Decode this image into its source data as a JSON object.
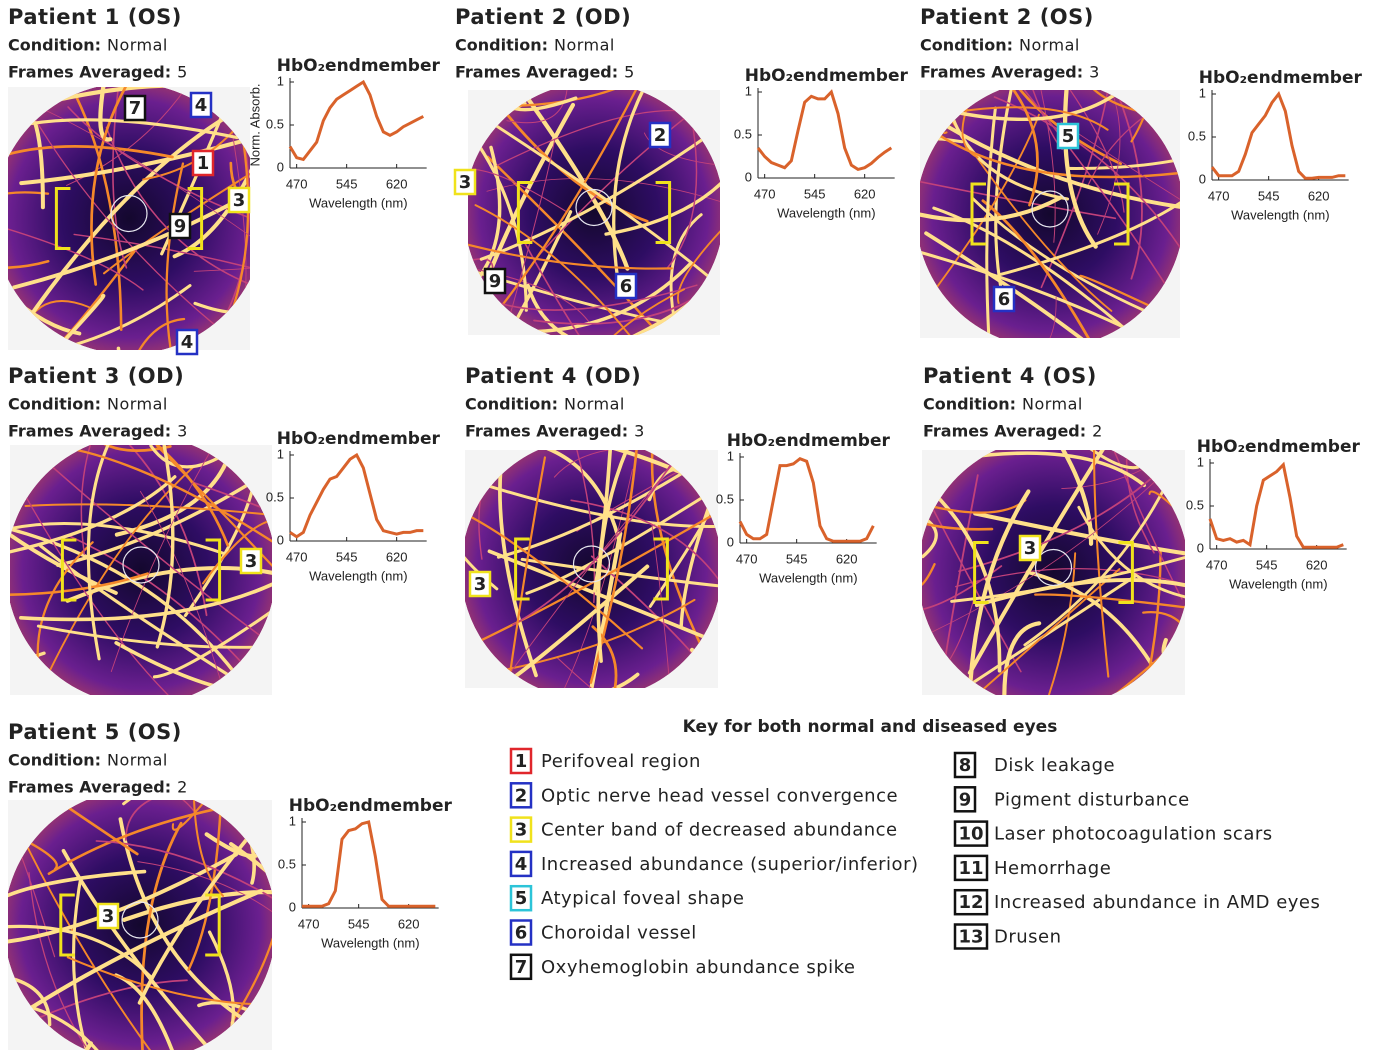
{
  "panels": [
    {
      "title": "Patient 1 (OS)",
      "condition_label": "Condition:",
      "condition": "Normal",
      "frames_label": "Frames Averaged:",
      "frames": 5,
      "markers": [
        "7",
        "4",
        "1",
        "3",
        "9",
        "4"
      ]
    },
    {
      "title": "Patient 2 (OD)",
      "condition_label": "Condition:",
      "condition": "Normal",
      "frames_label": "Frames Averaged:",
      "frames": 5,
      "markers": [
        "2",
        "3",
        "9",
        "6"
      ]
    },
    {
      "title": "Patient 2 (OS)",
      "condition_label": "Condition:",
      "condition": "Normal",
      "frames_label": "Frames Averaged:",
      "frames": 3,
      "markers": [
        "5",
        "6"
      ]
    },
    {
      "title": "Patient 3 (OD)",
      "condition_label": "Condition:",
      "condition": "Normal",
      "frames_label": "Frames Averaged:",
      "frames": 3,
      "markers": [
        "3"
      ]
    },
    {
      "title": "Patient 4 (OD)",
      "condition_label": "Condition:",
      "condition": "Normal",
      "frames_label": "Frames Averaged:",
      "frames": 3,
      "markers": [
        "3"
      ]
    },
    {
      "title": "Patient 4 (OS)",
      "condition_label": "Condition:",
      "condition": "Normal",
      "frames_label": "Frames Averaged:",
      "frames": 2,
      "markers": [
        "3"
      ]
    },
    {
      "title": "Patient 5 (OS)",
      "condition_label": "Condition:",
      "condition": "Normal",
      "frames_label": "Frames Averaged:",
      "frames": 2,
      "markers": [
        "3"
      ]
    }
  ],
  "chart_data": [
    {
      "type": "line",
      "title": "HbO₂endmember",
      "xlabel": "Wavelength (nm)",
      "ylabel": "Norm. Absorb.",
      "x": [
        460,
        470,
        480,
        490,
        500,
        510,
        520,
        530,
        540,
        550,
        560,
        570,
        580,
        590,
        600,
        610,
        620,
        630,
        640,
        650,
        660
      ],
      "series": [
        {
          "color": "#d9622b",
          "values": [
            0.25,
            0.12,
            0.1,
            0.2,
            0.3,
            0.55,
            0.7,
            0.8,
            0.85,
            0.9,
            0.95,
            1,
            0.85,
            0.6,
            0.42,
            0.38,
            0.42,
            0.48,
            0.52,
            0.56,
            0.6
          ]
        }
      ],
      "xlim": [
        460,
        665
      ],
      "ylim": [
        0,
        1
      ],
      "xticks": [
        470,
        545,
        620
      ],
      "yticks": [
        0,
        0.5,
        1
      ]
    },
    {
      "type": "line",
      "title": "HbO₂endmember",
      "xlabel": "Wavelength (nm)",
      "x": [
        460,
        470,
        480,
        490,
        500,
        510,
        520,
        530,
        540,
        550,
        560,
        570,
        580,
        590,
        600,
        610,
        620,
        630,
        640,
        650,
        660
      ],
      "series": [
        {
          "color": "#d9622b",
          "values": [
            0.35,
            0.25,
            0.18,
            0.15,
            0.12,
            0.2,
            0.55,
            0.88,
            0.95,
            0.92,
            0.92,
            1,
            0.75,
            0.35,
            0.15,
            0.1,
            0.12,
            0.17,
            0.24,
            0.3,
            0.35
          ]
        }
      ],
      "xlim": [
        460,
        665
      ],
      "ylim": [
        0,
        1
      ],
      "xticks": [
        470,
        545,
        620
      ],
      "yticks": [
        0,
        0.5,
        1
      ]
    },
    {
      "type": "line",
      "title": "HbO₂endmember",
      "xlabel": "Wavelength (nm)",
      "x": [
        460,
        470,
        480,
        490,
        500,
        510,
        520,
        530,
        540,
        550,
        560,
        570,
        580,
        590,
        600,
        610,
        620,
        630,
        640,
        650,
        660
      ],
      "series": [
        {
          "color": "#d9622b",
          "values": [
            0.15,
            0.05,
            0.05,
            0.05,
            0.1,
            0.3,
            0.55,
            0.65,
            0.75,
            0.9,
            1,
            0.8,
            0.4,
            0.1,
            0.02,
            0.02,
            0.03,
            0.03,
            0.03,
            0.05,
            0.05
          ]
        }
      ],
      "xlim": [
        460,
        665
      ],
      "ylim": [
        0,
        1
      ],
      "xticks": [
        470,
        545,
        620
      ],
      "yticks": [
        0,
        0.5,
        1
      ]
    },
    {
      "type": "line",
      "title": "HbO₂endmember",
      "xlabel": "Wavelength (nm)",
      "x": [
        460,
        470,
        480,
        490,
        500,
        510,
        520,
        530,
        540,
        550,
        560,
        570,
        580,
        590,
        600,
        610,
        620,
        630,
        640,
        650,
        660
      ],
      "series": [
        {
          "color": "#d9622b",
          "values": [
            0.1,
            0.05,
            0.1,
            0.3,
            0.45,
            0.6,
            0.72,
            0.75,
            0.85,
            0.95,
            1,
            0.85,
            0.55,
            0.25,
            0.12,
            0.1,
            0.08,
            0.1,
            0.1,
            0.12,
            0.12
          ]
        }
      ],
      "xlim": [
        460,
        665
      ],
      "ylim": [
        0,
        1
      ],
      "xticks": [
        470,
        545,
        620
      ],
      "yticks": [
        0,
        0.5,
        1
      ]
    },
    {
      "type": "line",
      "title": "HbO₂endmember",
      "xlabel": "Wavelength (nm)",
      "x": [
        460,
        470,
        480,
        490,
        500,
        510,
        520,
        530,
        540,
        550,
        560,
        570,
        580,
        590,
        600,
        610,
        620,
        630,
        640,
        650,
        660
      ],
      "series": [
        {
          "color": "#d9622b",
          "values": [
            0.25,
            0.1,
            0.05,
            0.05,
            0.1,
            0.5,
            0.9,
            0.9,
            0.92,
            0.98,
            0.95,
            0.7,
            0.2,
            0.05,
            0.02,
            0.02,
            0.02,
            0.02,
            0.02,
            0.05,
            0.2
          ]
        }
      ],
      "xlim": [
        460,
        665
      ],
      "ylim": [
        0,
        1
      ],
      "xticks": [
        470,
        545,
        620
      ],
      "yticks": [
        0,
        0.5,
        1
      ]
    },
    {
      "type": "line",
      "title": "HbO₂endmember",
      "xlabel": "Wavelength (nm)",
      "x": [
        460,
        470,
        480,
        490,
        500,
        510,
        520,
        530,
        540,
        550,
        560,
        570,
        580,
        590,
        600,
        610,
        620,
        630,
        640,
        650,
        660
      ],
      "series": [
        {
          "color": "#d9622b",
          "values": [
            0.35,
            0.12,
            0.1,
            0.12,
            0.08,
            0.1,
            0.05,
            0.5,
            0.8,
            0.85,
            0.9,
            0.98,
            0.6,
            0.15,
            0.02,
            0.02,
            0.02,
            0.02,
            0.02,
            0.02,
            0.05
          ]
        }
      ],
      "xlim": [
        460,
        665
      ],
      "ylim": [
        0,
        1
      ],
      "xticks": [
        470,
        545,
        620
      ],
      "yticks": [
        0,
        0.5,
        1
      ]
    },
    {
      "type": "line",
      "title": "HbO₂endmember",
      "xlabel": "Wavelength (nm)",
      "x": [
        460,
        470,
        480,
        490,
        500,
        510,
        520,
        530,
        540,
        550,
        560,
        570,
        580,
        590,
        600,
        610,
        620,
        630,
        640,
        650,
        660
      ],
      "series": [
        {
          "color": "#d9622b",
          "values": [
            0.02,
            0.02,
            0.02,
            0.02,
            0.05,
            0.2,
            0.8,
            0.9,
            0.92,
            0.98,
            1,
            0.6,
            0.1,
            0.02,
            0.02,
            0.02,
            0.02,
            0.02,
            0.02,
            0.02,
            0.02
          ]
        }
      ],
      "xlim": [
        460,
        665
      ],
      "ylim": [
        0,
        1
      ],
      "xticks": [
        470,
        545,
        620
      ],
      "yticks": [
        0,
        0.5,
        1
      ]
    }
  ],
  "key": {
    "title": "Key for both normal and diseased eyes",
    "items": [
      {
        "number": "1",
        "text": "Perifoveal region",
        "color": "#e0262b"
      },
      {
        "number": "2",
        "text": "Optic nerve head vessel convergence",
        "color": "#2431c4"
      },
      {
        "number": "3",
        "text": "Center band of decreased abundance",
        "color": "#f0e21c"
      },
      {
        "number": "4",
        "text": "Increased abundance (superior/inferior)",
        "color": "#2431c4"
      },
      {
        "number": "5",
        "text": "Atypical foveal shape",
        "color": "#2cc4d8"
      },
      {
        "number": "6",
        "text": "Choroidal vessel",
        "color": "#2431c4"
      },
      {
        "number": "7",
        "text": "Oxyhemoglobin abundance spike",
        "color": "#111111"
      },
      {
        "number": "8",
        "text": "Disk leakage",
        "color": "#111111"
      },
      {
        "number": "9",
        "text": "Pigment disturbance",
        "color": "#111111"
      },
      {
        "number": "10",
        "text": "Laser photocoagulation scars",
        "color": "#111111"
      },
      {
        "number": "11",
        "text": "Hemorrhage",
        "color": "#111111"
      },
      {
        "number": "12",
        "text": "Increased abundance in AMD eyes",
        "color": "#111111"
      },
      {
        "number": "13",
        "text": "Drusen",
        "color": "#111111"
      }
    ]
  }
}
